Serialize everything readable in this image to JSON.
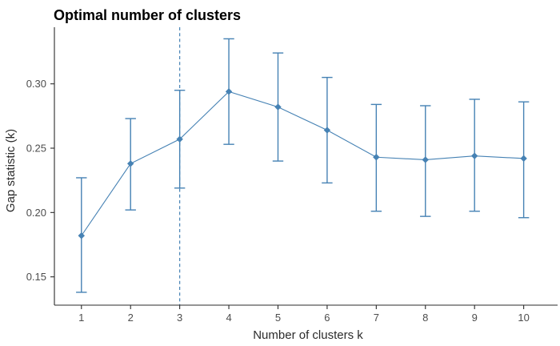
{
  "chart_data": {
    "type": "line",
    "title": "Optimal number of clusters",
    "xlabel": "Number of clusters k",
    "ylabel": "Gap statistic (k)",
    "x": [
      1,
      2,
      3,
      4,
      5,
      6,
      7,
      8,
      9,
      10
    ],
    "series": [
      {
        "name": "Gap statistic",
        "values": [
          0.182,
          0.238,
          0.257,
          0.294,
          0.282,
          0.264,
          0.243,
          0.241,
          0.244,
          0.242
        ]
      }
    ],
    "error_low": [
      0.138,
      0.202,
      0.219,
      0.253,
      0.24,
      0.223,
      0.201,
      0.197,
      0.201,
      0.196
    ],
    "error_high": [
      0.227,
      0.273,
      0.295,
      0.335,
      0.324,
      0.305,
      0.284,
      0.283,
      0.288,
      0.286
    ],
    "vline_x": 3,
    "vline_style": "dashed",
    "marker": "diamond",
    "grid": false,
    "legend": "none",
    "xticks": [
      1,
      2,
      3,
      4,
      5,
      6,
      7,
      8,
      9,
      10
    ],
    "xtick_labels": [
      "1",
      "2",
      "3",
      "4",
      "5",
      "6",
      "7",
      "8",
      "9",
      "10"
    ],
    "yticks": [
      0.15,
      0.2,
      0.25,
      0.3
    ],
    "ytick_labels": [
      "0.15",
      "0.20",
      "0.25",
      "0.30"
    ],
    "xlim": [
      0.45,
      10.69
    ],
    "ylim": [
      0.128,
      0.344
    ],
    "colors": {
      "series": "#4682B4",
      "axis": "#2b2b2b",
      "tick_label": "#4d4d4d",
      "title": "#000000"
    }
  }
}
